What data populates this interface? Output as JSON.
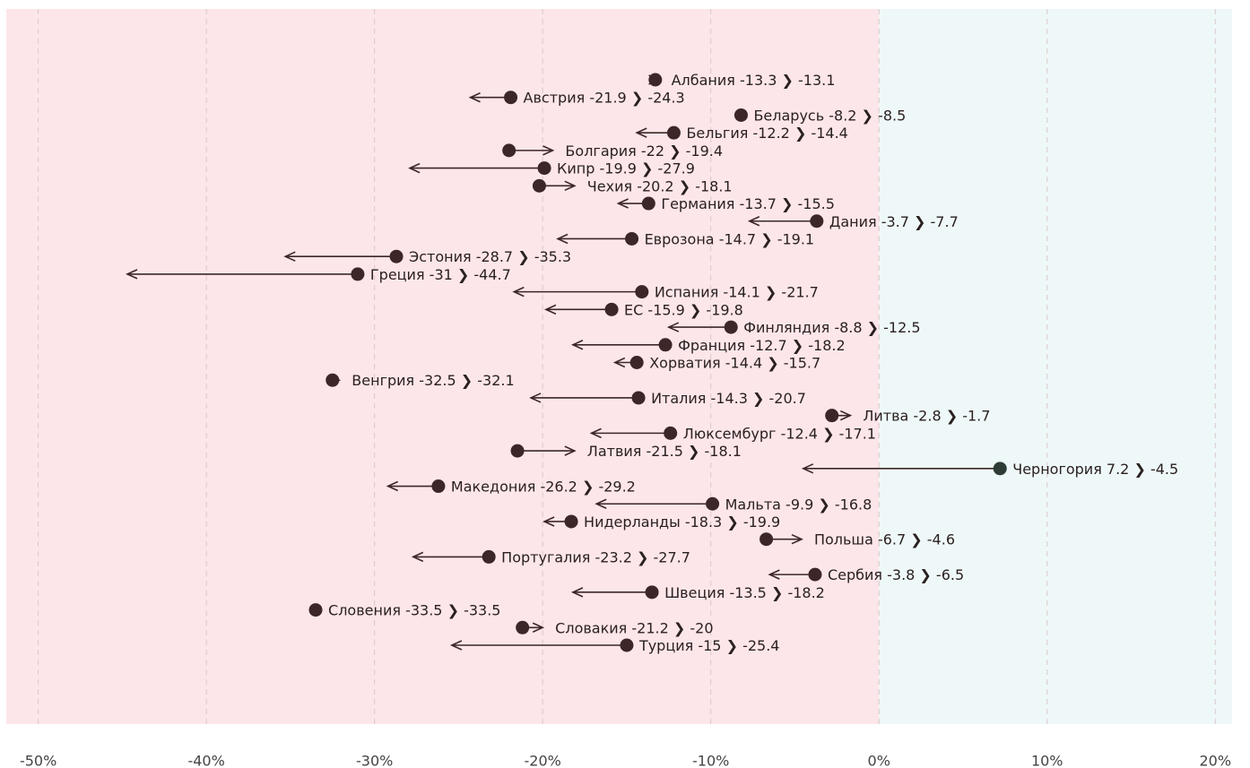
{
  "chart_data": {
    "type": "arrow",
    "categories": [
      "Албания",
      "Австрия",
      "Беларусь",
      "Бельгия",
      "Болгария",
      "Кипр",
      "Чехия",
      "Германия",
      "Дания",
      "Еврозона",
      "Эстония",
      "Греция",
      "Испания",
      "ЕС",
      "Финляндия",
      "Франция",
      "Хорватия",
      "Венгрия",
      "Италия",
      "Литва",
      "Люксембург",
      "Латвия",
      "Черногория",
      "Македония",
      "Мальта",
      "Нидерланды",
      "Польша",
      "Португалия",
      "Сербия",
      "Швеция",
      "Словения",
      "Словакия",
      "Турция"
    ],
    "values": [
      -13.3,
      -21.9,
      -8.2,
      -12.2,
      -22,
      -19.9,
      -20.2,
      -13.7,
      -3.7,
      -14.7,
      -28.7,
      -31,
      -14.1,
      -15.9,
      -8.8,
      -12.7,
      -14.4,
      -32.5,
      -14.3,
      -2.8,
      -12.4,
      -21.5,
      7.2,
      -26.2,
      -9.9,
      -18.3,
      -6.7,
      -23.2,
      -3.8,
      -13.5,
      -33.5,
      -21.2,
      -15
    ],
    "end_values": [
      -13.1,
      -24.3,
      -8.5,
      -14.4,
      -19.4,
      -27.9,
      -18.1,
      -15.5,
      -7.7,
      -19.1,
      -35.3,
      -44.7,
      -21.7,
      -19.8,
      -12.5,
      -18.2,
      -15.7,
      -32.1,
      -20.7,
      -1.7,
      -17.1,
      -18.1,
      -4.5,
      -29.2,
      -16.8,
      -19.9,
      -4.6,
      -27.7,
      -6.5,
      -18.2,
      -33.5,
      -20,
      -25.4
    ],
    "separator": "❯",
    "color": "#3d2627",
    "positive_color": "#2d3d35",
    "arrow_color": "#3d2627",
    "negative_background": "#fde6e9",
    "positive_background": "#eff8f8",
    "xlim": [
      -51.9,
      21
    ],
    "xticks": [
      {
        "value": -50,
        "label": "-50%"
      },
      {
        "value": -40,
        "label": "-40%"
      },
      {
        "value": -30,
        "label": "-30%"
      },
      {
        "value": -20,
        "label": "-20%"
      },
      {
        "value": -10,
        "label": "-10%"
      },
      {
        "value": 0,
        "label": "0%"
      },
      {
        "value": 10,
        "label": "10%"
      },
      {
        "value": 20,
        "label": "20%"
      }
    ],
    "grid": true
  }
}
